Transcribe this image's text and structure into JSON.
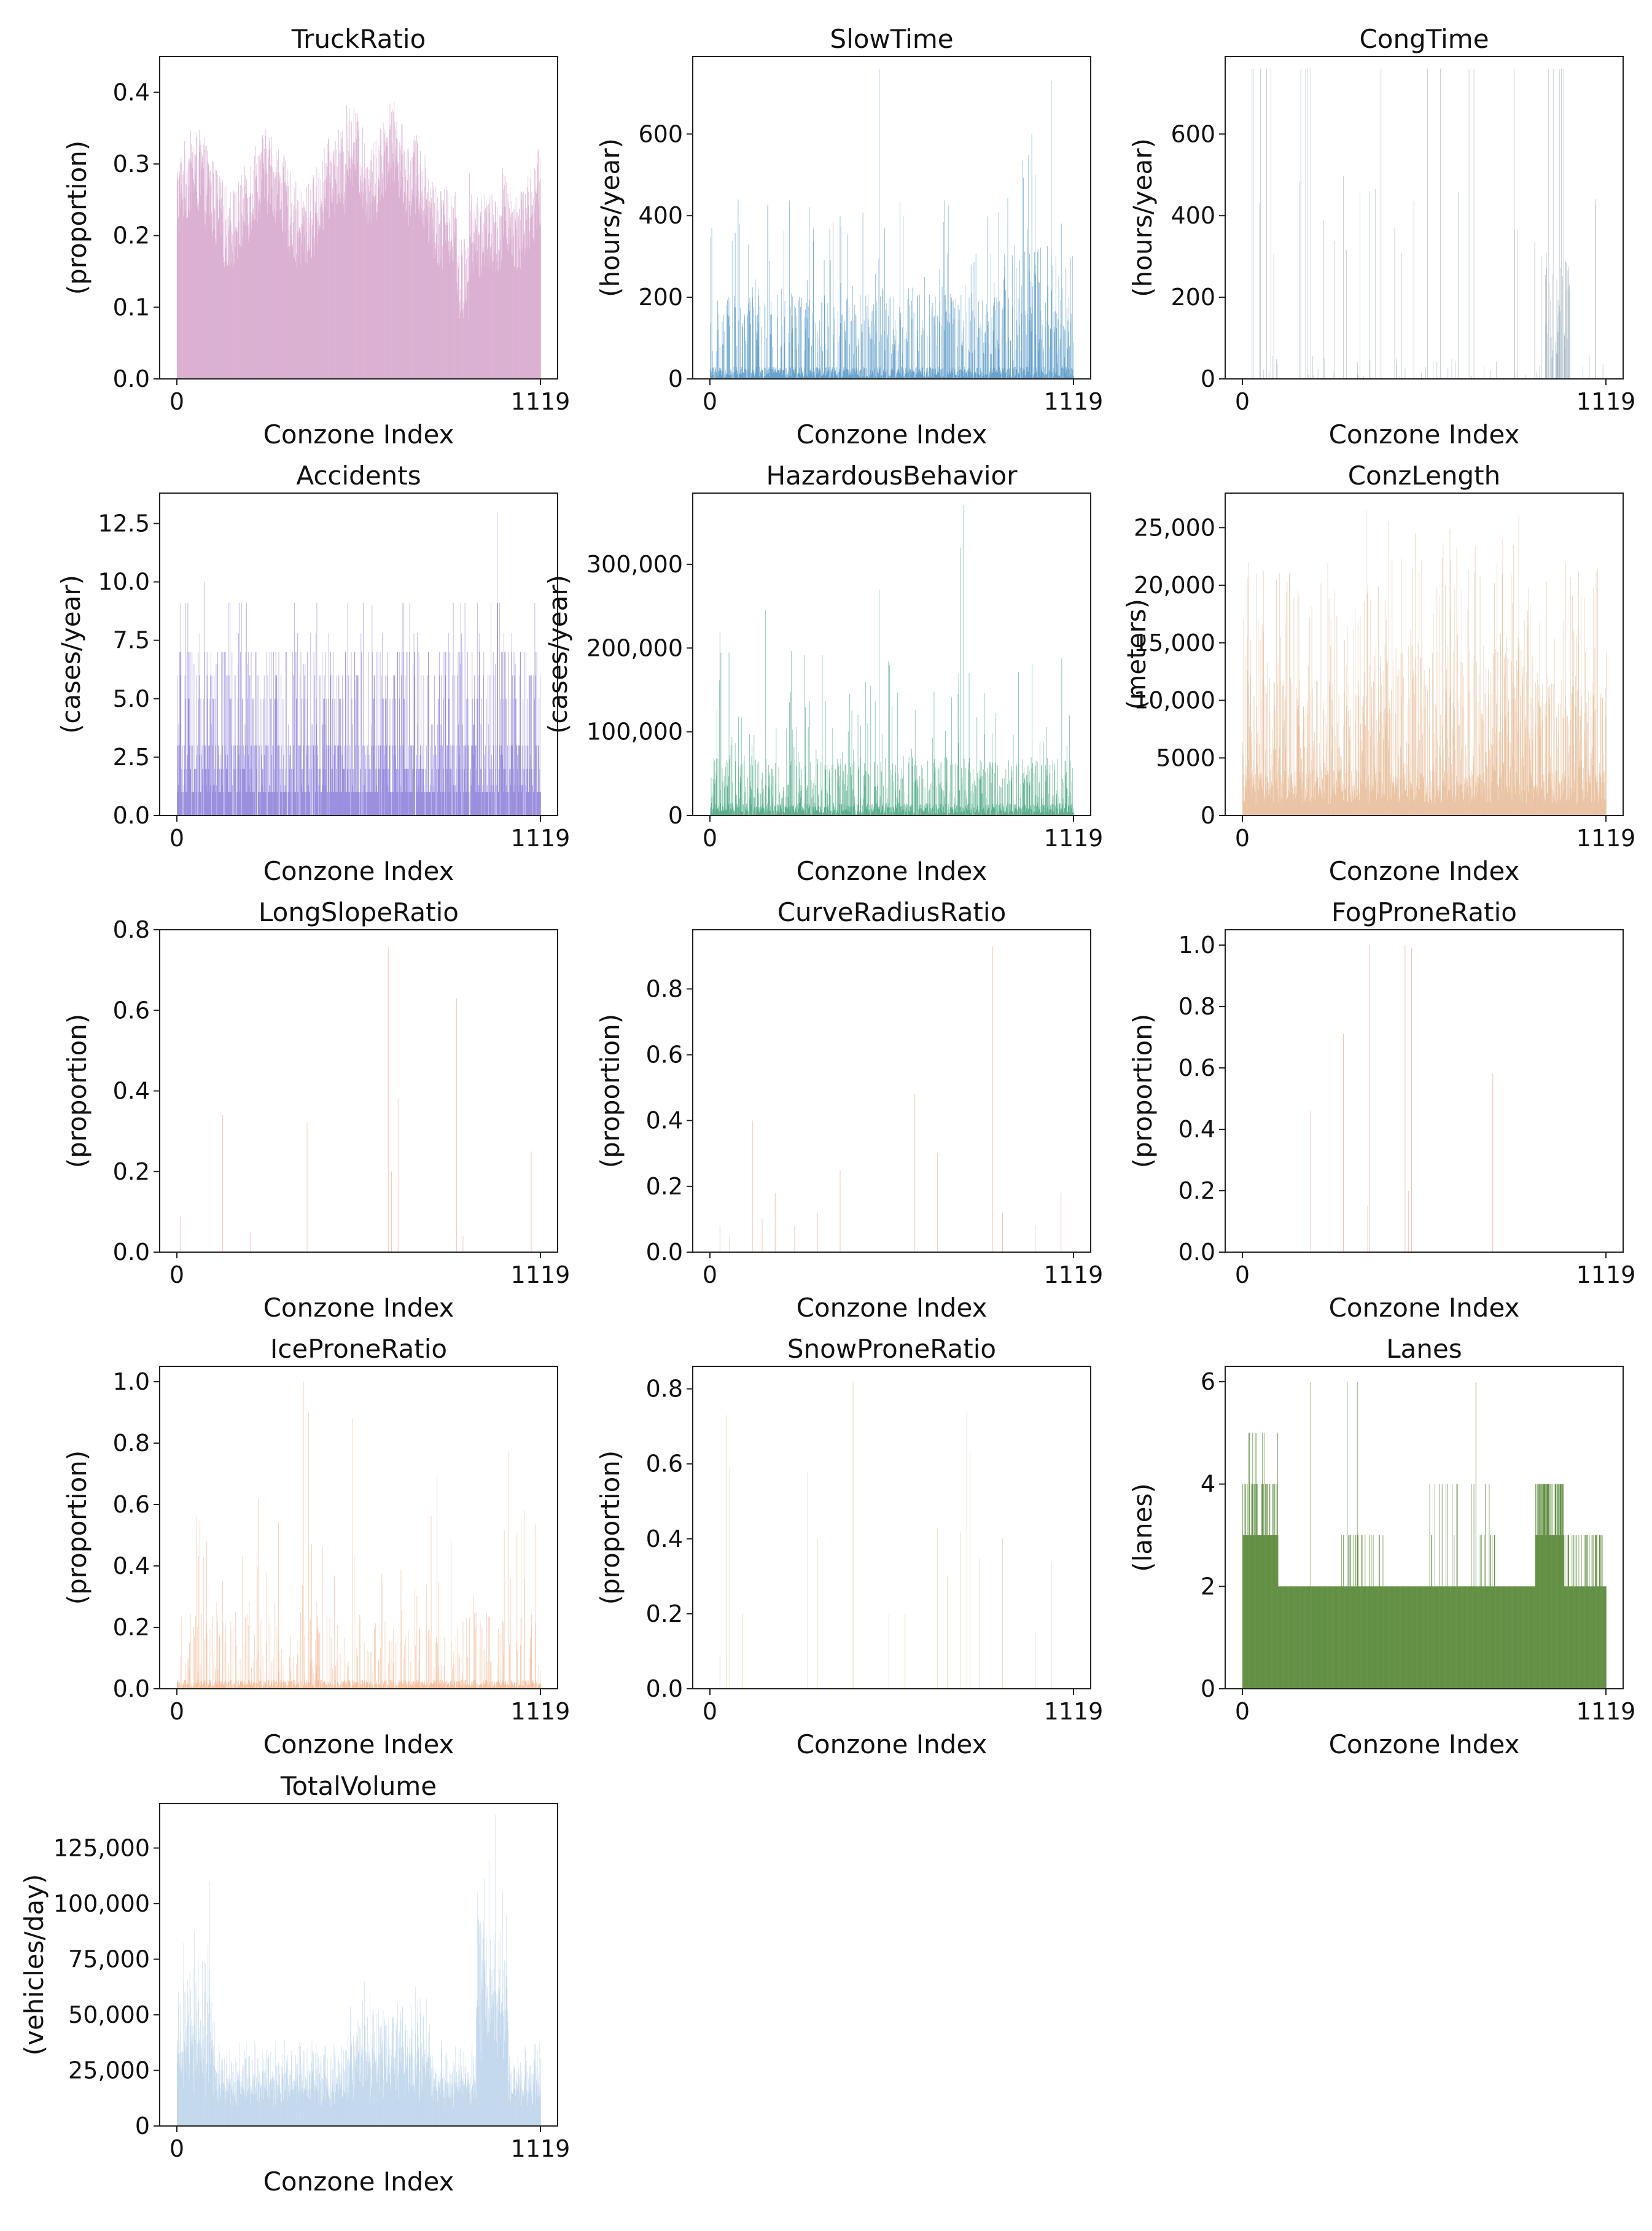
{
  "chart_data": [
    {
      "type": "bar",
      "title": "TruckRatio",
      "xlabel": "Conzone Index",
      "ylabel": "(proportion)",
      "color": "#d4a2c9",
      "xlim": [
        0,
        1119
      ],
      "ylim": [
        0,
        0.45
      ],
      "yticks": [
        0,
        0.1,
        0.2,
        0.3,
        0.4
      ],
      "ytick_labels": [
        "0.0",
        "0.1",
        "0.2",
        "0.3",
        "0.4"
      ],
      "xtick_labels": [
        "0",
        "1119"
      ],
      "profile": "truck",
      "index_range": [
        0,
        1119
      ]
    },
    {
      "type": "bar",
      "title": "SlowTime",
      "xlabel": "Conzone Index",
      "ylabel": "(hours/year)",
      "color": "#1f77b4",
      "xlim": [
        0,
        1119
      ],
      "ylim": [
        0,
        790
      ],
      "yticks": [
        0,
        200,
        400,
        600
      ],
      "ytick_labels": [
        "0",
        "200",
        "400",
        "600"
      ],
      "xtick_labels": [
        "0",
        "1119"
      ],
      "profile": "slow",
      "index_range": [
        0,
        1119
      ],
      "peaks": [
        [
          520,
          760
        ],
        [
          1050,
          730
        ],
        [
          990,
          600
        ],
        [
          90,
          380
        ],
        [
          1000,
          500
        ]
      ]
    },
    {
      "type": "bar",
      "title": "CongTime",
      "xlabel": "Conzone Index",
      "ylabel": "(hours/year)",
      "color": "#7f97a8",
      "xlim": [
        0,
        1119
      ],
      "ylim": [
        0,
        790
      ],
      "yticks": [
        0,
        200,
        400,
        600
      ],
      "ytick_labels": [
        "0",
        "200",
        "400",
        "600"
      ],
      "xtick_labels": [
        "0",
        "1119"
      ],
      "profile": "cong",
      "index_range": [
        0,
        1119
      ]
    },
    {
      "type": "bar",
      "title": "Accidents",
      "xlabel": "Conzone Index",
      "ylabel": "(cases/year)",
      "color": "#6a5acd",
      "xlim": [
        0,
        1119
      ],
      "ylim": [
        0,
        13.8
      ],
      "yticks": [
        0,
        2.5,
        5,
        7.5,
        10,
        12.5
      ],
      "ytick_labels": [
        "0.0",
        "2.5",
        "5.0",
        "7.5",
        "10.0",
        "12.5"
      ],
      "xtick_labels": [
        "0",
        "1119"
      ],
      "profile": "acc",
      "index_range": [
        0,
        1119
      ],
      "peaks": [
        [
          985,
          13
        ],
        [
          85,
          10
        ],
        [
          600,
          9
        ]
      ]
    },
    {
      "type": "bar",
      "title": "HazardousBehavior",
      "xlabel": "Conzone Index",
      "ylabel": "(cases/year)",
      "color": "#0f8a5a",
      "xlim": [
        0,
        1119
      ],
      "ylim": [
        0,
        385000
      ],
      "yticks": [
        0,
        100000,
        200000,
        300000
      ],
      "ytick_labels": [
        "0",
        "100,000",
        "200,000",
        "300,000"
      ],
      "xtick_labels": [
        "0",
        "1119"
      ],
      "profile": "haz",
      "index_range": [
        0,
        1119
      ],
      "peaks": [
        [
          780,
          370000
        ],
        [
          770,
          320000
        ],
        [
          520,
          270000
        ],
        [
          170,
          245000
        ],
        [
          30,
          220000
        ]
      ]
    },
    {
      "type": "bar",
      "title": "ConzLength",
      "xlabel": "Conzone Index",
      "ylabel": "(meters)",
      "color": "#e0a878",
      "xlim": [
        0,
        1119
      ],
      "ylim": [
        0,
        28000
      ],
      "yticks": [
        0,
        5000,
        10000,
        15000,
        20000,
        25000
      ],
      "ytick_labels": [
        "0",
        "5000",
        "10,000",
        "15,000",
        "20,000",
        "25,000"
      ],
      "xtick_labels": [
        "0",
        "1119"
      ],
      "profile": "len",
      "index_range": [
        0,
        1119
      ],
      "peaks": [
        [
          380,
          26500
        ],
        [
          850,
          26000
        ],
        [
          450,
          25500
        ]
      ]
    },
    {
      "type": "bar",
      "title": "LongSlopeRatio",
      "xlabel": "Conzone Index",
      "ylabel": "(proportion)",
      "color": "#ee8070",
      "xlim": [
        0,
        1119
      ],
      "ylim": [
        0,
        0.8
      ],
      "yticks": [
        0,
        0.2,
        0.4,
        0.6,
        0.8
      ],
      "ytick_labels": [
        "0.0",
        "0.2",
        "0.4",
        "0.6",
        "0.8"
      ],
      "xtick_labels": [
        "0",
        "1119"
      ],
      "profile": "spikes",
      "index_range": [
        0,
        1119
      ],
      "spikes": [
        [
          10,
          0.09
        ],
        [
          140,
          0.34
        ],
        [
          225,
          0.05
        ],
        [
          400,
          0.32
        ],
        [
          650,
          0.76
        ],
        [
          680,
          0.38
        ],
        [
          860,
          0.63
        ],
        [
          1090,
          0.25
        ],
        [
          880,
          0.04
        ],
        [
          660,
          0.2
        ]
      ]
    },
    {
      "type": "bar",
      "title": "CurveRadiusRatio",
      "xlabel": "Conzone Index",
      "ylabel": "(proportion)",
      "color": "#d9805f",
      "xlim": [
        0,
        1119
      ],
      "ylim": [
        0,
        0.98
      ],
      "yticks": [
        0,
        0.2,
        0.4,
        0.6,
        0.8
      ],
      "ytick_labels": [
        "0.0",
        "0.2",
        "0.4",
        "0.6",
        "0.8"
      ],
      "xtick_labels": [
        "0",
        "1119"
      ],
      "profile": "spikes",
      "index_range": [
        0,
        1119
      ],
      "spikes": [
        [
          30,
          0.08
        ],
        [
          130,
          0.4
        ],
        [
          160,
          0.1
        ],
        [
          200,
          0.18
        ],
        [
          260,
          0.08
        ],
        [
          330,
          0.12
        ],
        [
          400,
          0.25
        ],
        [
          630,
          0.48
        ],
        [
          700,
          0.3
        ],
        [
          870,
          0.93
        ],
        [
          900,
          0.12
        ],
        [
          1000,
          0.08
        ],
        [
          1080,
          0.18
        ],
        [
          60,
          0.05
        ]
      ]
    },
    {
      "type": "bar",
      "title": "FogProneRatio",
      "xlabel": "Conzone Index",
      "ylabel": "(proportion)",
      "color": "#e0705a",
      "xlim": [
        0,
        1119
      ],
      "ylim": [
        0,
        1.05
      ],
      "yticks": [
        0,
        0.2,
        0.4,
        0.6,
        0.8,
        1.0
      ],
      "ytick_labels": [
        "0.0",
        "0.2",
        "0.4",
        "0.6",
        "0.8",
        "1.0"
      ],
      "xtick_labels": [
        "0",
        "1119"
      ],
      "profile": "spikes",
      "index_range": [
        0,
        1119
      ],
      "spikes": [
        [
          210,
          0.46
        ],
        [
          310,
          0.71
        ],
        [
          390,
          1.0
        ],
        [
          385,
          0.15
        ],
        [
          500,
          1.0
        ],
        [
          520,
          0.99
        ],
        [
          510,
          0.2
        ],
        [
          770,
          0.58
        ]
      ]
    },
    {
      "type": "bar",
      "title": "IceProneRatio",
      "xlabel": "Conzone Index",
      "ylabel": "(proportion)",
      "color": "#f0a070",
      "xlim": [
        0,
        1119
      ],
      "ylim": [
        0,
        1.05
      ],
      "yticks": [
        0,
        0.2,
        0.4,
        0.6,
        0.8,
        1.0
      ],
      "ytick_labels": [
        "0.0",
        "0.2",
        "0.4",
        "0.6",
        "0.8",
        "1.0"
      ],
      "xtick_labels": [
        "0",
        "1119"
      ],
      "profile": "ice",
      "index_range": [
        0,
        1119
      ],
      "peaks": [
        [
          390,
          1.0
        ],
        [
          405,
          0.9
        ],
        [
          540,
          0.88
        ],
        [
          800,
          0.7
        ],
        [
          1020,
          0.77
        ],
        [
          60,
          0.56
        ],
        [
          250,
          0.62
        ]
      ]
    },
    {
      "type": "bar",
      "title": "SnowProneRatio",
      "xlabel": "Conzone Index",
      "ylabel": "(proportion)",
      "color": "#b8c070",
      "xlim": [
        0,
        1119
      ],
      "ylim": [
        0,
        0.86
      ],
      "yticks": [
        0,
        0.2,
        0.4,
        0.6,
        0.8
      ],
      "ytick_labels": [
        "0.0",
        "0.2",
        "0.4",
        "0.6",
        "0.8"
      ],
      "xtick_labels": [
        "0",
        "1119"
      ],
      "profile": "spikes",
      "index_range": [
        0,
        1119
      ],
      "spikes": [
        [
          30,
          0.09
        ],
        [
          50,
          0.73
        ],
        [
          60,
          0.59
        ],
        [
          100,
          0.2
        ],
        [
          300,
          0.58
        ],
        [
          330,
          0.4
        ],
        [
          440,
          0.82
        ],
        [
          550,
          0.2
        ],
        [
          700,
          0.43
        ],
        [
          770,
          0.42
        ],
        [
          790,
          0.74
        ],
        [
          800,
          0.63
        ],
        [
          830,
          0.35
        ],
        [
          900,
          0.4
        ],
        [
          1050,
          0.34
        ],
        [
          1000,
          0.15
        ],
        [
          730,
          0.3
        ],
        [
          600,
          0.2
        ]
      ]
    },
    {
      "type": "bar",
      "title": "Lanes",
      "xlabel": "Conzone Index",
      "ylabel": "(lanes)",
      "color": "#5a8a3a",
      "xlim": [
        0,
        1119
      ],
      "ylim": [
        0,
        6.3
      ],
      "yticks": [
        0,
        2,
        4,
        6
      ],
      "ytick_labels": [
        "0",
        "2",
        "4",
        "6"
      ],
      "xtick_labels": [
        "0",
        "1119"
      ],
      "profile": "lanes",
      "index_range": [
        0,
        1119
      ]
    },
    {
      "type": "bar",
      "title": "TotalVolume",
      "xlabel": "Conzone Index",
      "ylabel": "(vehicles/day)",
      "color": "#a8c6e4",
      "xlim": [
        0,
        1119
      ],
      "ylim": [
        0,
        145000
      ],
      "yticks": [
        0,
        25000,
        50000,
        75000,
        100000,
        125000
      ],
      "ytick_labels": [
        "0",
        "25,000",
        "50,000",
        "75,000",
        "100,000",
        "125,000"
      ],
      "xtick_labels": [
        "0",
        "1119"
      ],
      "profile": "vol",
      "index_range": [
        0,
        1119
      ],
      "peaks": [
        [
          980,
          140000
        ],
        [
          100,
          110000
        ],
        [
          960,
          120000
        ]
      ]
    }
  ]
}
